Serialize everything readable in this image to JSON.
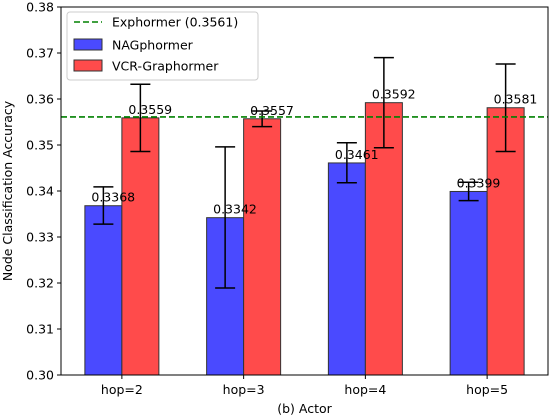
{
  "chart_data": {
    "type": "bar",
    "title": "",
    "xlabel": "(b) Actor",
    "ylabel": "Node Classification Accuracy",
    "ylim": [
      0.3,
      0.38
    ],
    "yticks": [
      0.3,
      0.31,
      0.32,
      0.33,
      0.34,
      0.35,
      0.36,
      0.37,
      0.38
    ],
    "ytick_labels": [
      "0.30",
      "0.31",
      "0.32",
      "0.33",
      "0.34",
      "0.35",
      "0.36",
      "0.37",
      "0.38"
    ],
    "categories": [
      "hop=2",
      "hop=3",
      "hop=4",
      "hop=5"
    ],
    "series": [
      {
        "name": "NAGphormer",
        "color": "#4a4aff",
        "values": [
          0.3368,
          0.3342,
          0.3461,
          0.3399
        ],
        "value_labels": [
          "0.3368",
          "0.3342",
          "0.3461",
          "0.3399"
        ],
        "err_low": [
          0.3328,
          0.3189,
          0.3418,
          0.3379
        ],
        "err_high": [
          0.3409,
          0.3496,
          0.3505,
          0.3419
        ]
      },
      {
        "name": "VCR-Graphormer",
        "color": "#ff4b4b",
        "values": [
          0.3559,
          0.3557,
          0.3592,
          0.3581
        ],
        "value_labels": [
          "0.3559",
          "0.3557",
          "0.3592",
          "0.3581"
        ],
        "err_low": [
          0.3486,
          0.354,
          0.3494,
          0.3486
        ],
        "err_high": [
          0.3632,
          0.3574,
          0.369,
          0.3676
        ]
      }
    ],
    "reference_line": {
      "label": "Exphormer (0.3561)",
      "value": 0.3561,
      "color": "#008000",
      "style": "dashed"
    },
    "legend": {
      "position": "top-left",
      "entries": [
        "Exphormer (0.3561)",
        "NAGphormer",
        "VCR-Graphormer"
      ]
    },
    "grid": false
  }
}
